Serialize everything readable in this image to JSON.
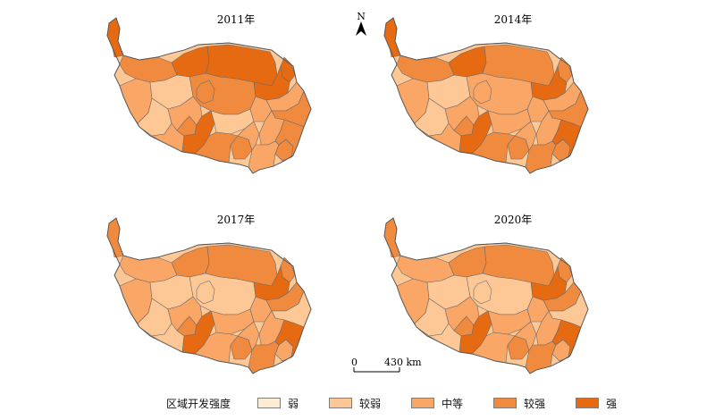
{
  "panels": [
    {
      "year_label": "2011年",
      "levels": [
        4,
        4,
        3,
        3,
        4,
        3,
        3,
        3,
        4,
        3,
        2,
        1,
        1,
        2,
        2,
        4,
        1,
        3,
        2,
        2,
        4,
        2,
        3,
        2,
        2,
        3,
        2
      ]
    },
    {
      "year_label": "2014年",
      "levels": [
        4,
        3,
        2,
        2,
        3,
        3,
        3,
        3,
        4,
        3,
        2,
        1,
        1,
        2,
        2,
        4,
        2,
        3,
        2,
        2,
        4,
        2,
        3,
        2,
        3,
        4,
        3
      ]
    },
    {
      "year_label": "2017年",
      "levels": [
        3,
        3,
        1,
        1,
        3,
        3,
        3,
        2,
        3,
        2,
        2,
        1,
        1,
        2,
        1,
        4,
        2,
        2,
        2,
        2,
        4,
        3,
        1,
        2,
        3,
        4,
        3
      ]
    },
    {
      "year_label": "2020年",
      "levels": [
        3,
        3,
        1,
        1,
        3,
        3,
        3,
        2,
        3,
        2,
        2,
        1,
        1,
        2,
        1,
        4,
        2,
        2,
        2,
        2,
        4,
        3,
        1,
        2,
        3,
        4,
        3
      ]
    }
  ],
  "north_arrow": {
    "label": "N"
  },
  "scale_bar": {
    "start_label": "0",
    "end_label": "430 km"
  },
  "legend": {
    "title": "区域开发强度",
    "items": [
      {
        "label": "弱",
        "color": "#fdebd3"
      },
      {
        "label": "较弱",
        "color": "#fdc896"
      },
      {
        "label": "中等",
        "color": "#f9a667"
      },
      {
        "label": "较强",
        "color": "#f08a3e"
      },
      {
        "label": "强",
        "color": "#e66a12"
      }
    ]
  }
}
